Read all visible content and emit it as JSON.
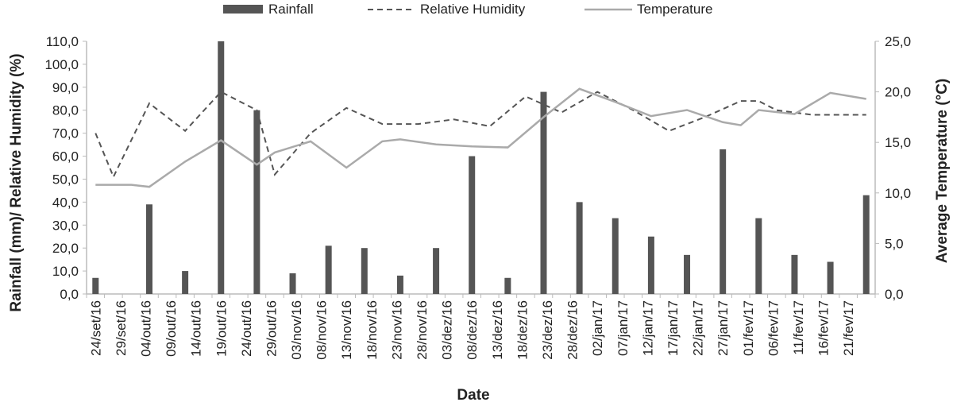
{
  "chart_data": {
    "type": "bar",
    "xlabel": "Date",
    "ylabel": "Rainfall (mm)/ Relative Humidity (%)",
    "y2label": "Average Temperature (°C)",
    "ylim": [
      0,
      110
    ],
    "y2lim": [
      0,
      25
    ],
    "yticks": [
      "0,0",
      "10,0",
      "20,0",
      "30,0",
      "40,0",
      "50,0",
      "60,0",
      "70,0",
      "80,0",
      "90,0",
      "100,0",
      "110,0"
    ],
    "y2ticks": [
      "0,0",
      "5,0",
      "10,0",
      "15,0",
      "20,0",
      "25,0"
    ],
    "categories": [
      "24/set/16",
      "29/set/16",
      "04/out/16",
      "09/out/16",
      "14/out/16",
      "19/out/16",
      "24/out/16",
      "29/out/16",
      "03/nov/16",
      "08/nov/16",
      "13/nov/16",
      "18/nov/16",
      "23/nov/16",
      "28/nov/16",
      "03/dez/16",
      "08/dez/16",
      "13/dez/16",
      "18/dez/16",
      "23/dez/16",
      "28/dez/16",
      "02/jan/17",
      "07/jan/17",
      "12/jan/17",
      "17/jan/17",
      "22/jan/17",
      "27/jan/17",
      "01/fev/17",
      "06/fev/17",
      "11/fev/17",
      "16/fev/17",
      "21/fev/17"
    ],
    "legend": [
      "Rainfall",
      "Relative Humidity",
      "Temperature"
    ],
    "series": [
      {
        "name": "Rainfall",
        "type": "bar",
        "axis": "left",
        "color": "#555555",
        "points": [
          [
            0,
            7
          ],
          [
            3,
            39
          ],
          [
            5,
            10
          ],
          [
            7,
            110
          ],
          [
            9,
            80
          ],
          [
            11,
            9
          ],
          [
            13,
            21
          ],
          [
            15,
            20
          ],
          [
            17,
            8
          ],
          [
            19,
            20
          ],
          [
            21,
            60
          ],
          [
            23,
            7
          ],
          [
            25,
            88
          ],
          [
            27,
            40
          ],
          [
            29,
            33
          ],
          [
            31,
            25
          ],
          [
            33,
            17
          ],
          [
            35,
            63
          ],
          [
            37,
            33
          ],
          [
            39,
            17
          ],
          [
            41,
            14
          ],
          [
            43,
            43
          ]
        ]
      },
      {
        "name": "Relative Humidity",
        "type": "line",
        "style": "dashed",
        "axis": "left",
        "color": "#555555",
        "points": [
          [
            0,
            70
          ],
          [
            1,
            51
          ],
          [
            3,
            83
          ],
          [
            5,
            71
          ],
          [
            7,
            88
          ],
          [
            9,
            80
          ],
          [
            10,
            52
          ],
          [
            12,
            70
          ],
          [
            14,
            81
          ],
          [
            16,
            74
          ],
          [
            18,
            74
          ],
          [
            20,
            76
          ],
          [
            22,
            73
          ],
          [
            24,
            86
          ],
          [
            26,
            79
          ],
          [
            28,
            88
          ],
          [
            30,
            80
          ],
          [
            32,
            71
          ],
          [
            34,
            77
          ],
          [
            36,
            84
          ],
          [
            37,
            84
          ],
          [
            38,
            80
          ],
          [
            40,
            78
          ],
          [
            42,
            78
          ],
          [
            43,
            78
          ]
        ]
      },
      {
        "name": "Temperature",
        "type": "line",
        "style": "solid",
        "axis": "right",
        "color": "#aaaaaa",
        "points": [
          [
            0,
            10.8
          ],
          [
            2,
            10.8
          ],
          [
            3,
            10.6
          ],
          [
            5,
            13.1
          ],
          [
            7,
            15.2
          ],
          [
            9,
            12.8
          ],
          [
            10,
            14
          ],
          [
            12,
            15.1
          ],
          [
            14,
            12.5
          ],
          [
            16,
            15.1
          ],
          [
            17,
            15.3
          ],
          [
            19,
            14.8
          ],
          [
            21,
            14.6
          ],
          [
            23,
            14.5
          ],
          [
            25,
            17.5
          ],
          [
            27,
            20.3
          ],
          [
            29,
            19
          ],
          [
            31,
            17.6
          ],
          [
            33,
            18.2
          ],
          [
            35,
            17
          ],
          [
            36,
            16.7
          ],
          [
            37,
            18.2
          ],
          [
            39,
            17.8
          ],
          [
            41,
            19.9
          ],
          [
            43,
            19.3
          ]
        ]
      }
    ],
    "grid": false,
    "legend_position": "top"
  }
}
